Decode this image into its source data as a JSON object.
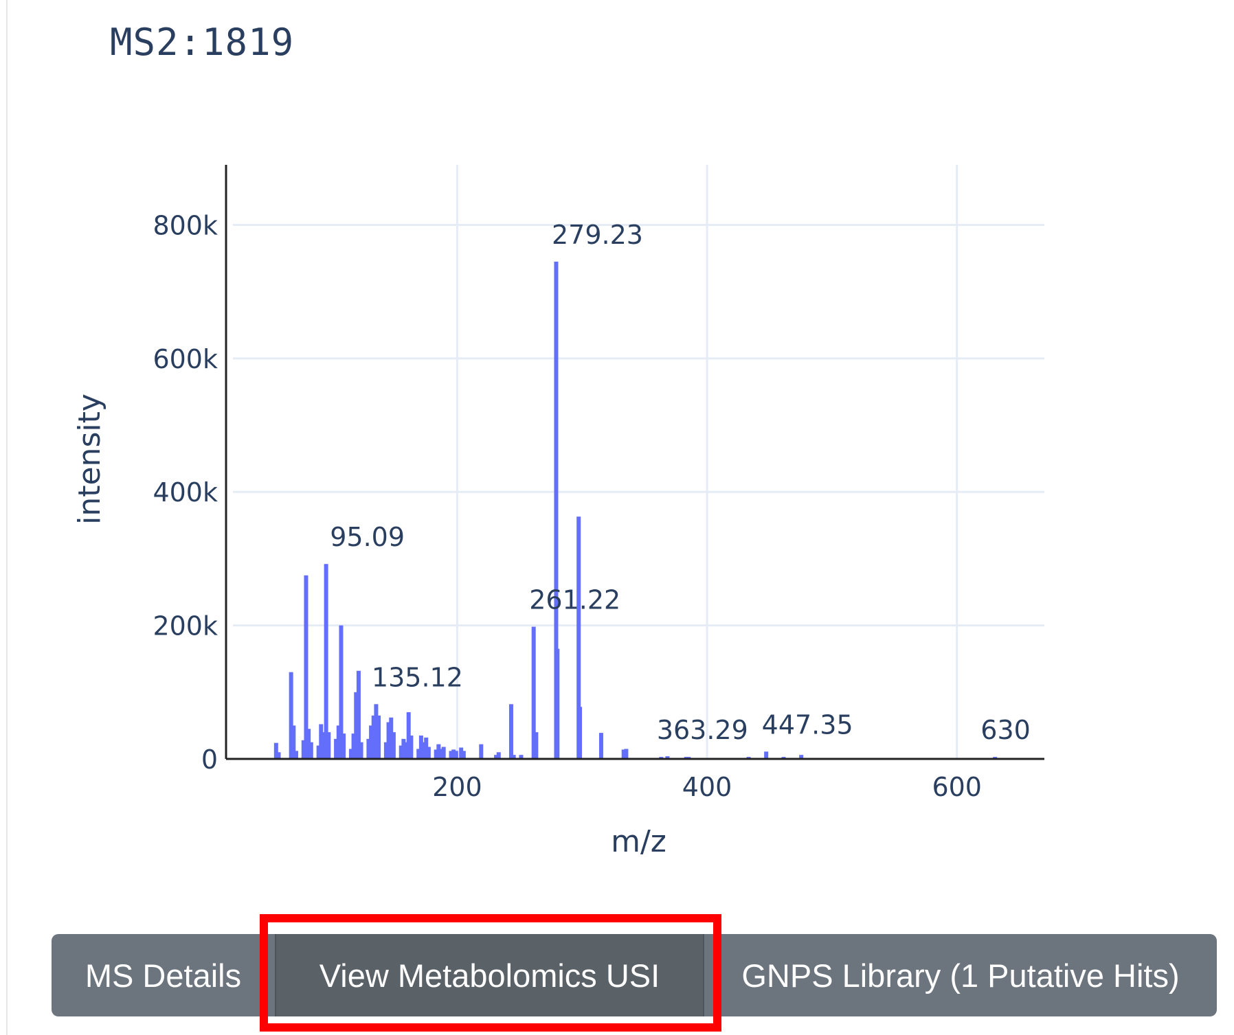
{
  "panel": {
    "title": "MS2:1819"
  },
  "chart_data": {
    "type": "bar",
    "xlabel": "m/z",
    "ylabel": "intensity",
    "xlim": [
      15,
      670
    ],
    "ylim": [
      0,
      890000
    ],
    "x_ticks": [
      200,
      400,
      600
    ],
    "x_tick_labels": [
      "200",
      "400",
      "600"
    ],
    "y_ticks": [
      0,
      200000,
      400000,
      600000,
      800000
    ],
    "y_tick_labels": [
      "0",
      "200k",
      "400k",
      "600k",
      "800k"
    ],
    "grid": true,
    "bar_color": "#636efa",
    "peaks": [
      [
        55.05,
        24000
      ],
      [
        57.07,
        10000
      ],
      [
        67.05,
        130000
      ],
      [
        69.07,
        50000
      ],
      [
        71.09,
        12000
      ],
      [
        77.04,
        28000
      ],
      [
        79.05,
        275000
      ],
      [
        81.07,
        45000
      ],
      [
        83.09,
        25000
      ],
      [
        89.06,
        20000
      ],
      [
        91.05,
        52000
      ],
      [
        93.07,
        40000
      ],
      [
        95.09,
        292000
      ],
      [
        97.1,
        40000
      ],
      [
        103.05,
        30000
      ],
      [
        105.07,
        50000
      ],
      [
        107.09,
        200000
      ],
      [
        109.1,
        38000
      ],
      [
        115.05,
        15000
      ],
      [
        117.07,
        38000
      ],
      [
        119.09,
        100000
      ],
      [
        121.1,
        132000
      ],
      [
        123.1,
        25000
      ],
      [
        129.07,
        30000
      ],
      [
        131.09,
        50000
      ],
      [
        133.1,
        65000
      ],
      [
        135.12,
        82000
      ],
      [
        137.13,
        65000
      ],
      [
        143.09,
        25000
      ],
      [
        145.1,
        55000
      ],
      [
        147.12,
        62000
      ],
      [
        149.13,
        40000
      ],
      [
        155.1,
        20000
      ],
      [
        157.1,
        30000
      ],
      [
        159.12,
        25000
      ],
      [
        161.13,
        70000
      ],
      [
        163.15,
        35000
      ],
      [
        169.1,
        15000
      ],
      [
        171.12,
        35000
      ],
      [
        173.13,
        25000
      ],
      [
        175.15,
        32000
      ],
      [
        177.16,
        18000
      ],
      [
        183.12,
        14000
      ],
      [
        185.13,
        22000
      ],
      [
        187.15,
        15000
      ],
      [
        189.16,
        18000
      ],
      [
        195.13,
        12000
      ],
      [
        197.15,
        14000
      ],
      [
        199.16,
        12000
      ],
      [
        203.18,
        17000
      ],
      [
        205.2,
        12000
      ],
      [
        219.19,
        22000
      ],
      [
        231.2,
        6000
      ],
      [
        233.21,
        10000
      ],
      [
        243.21,
        82000
      ],
      [
        245.23,
        6000
      ],
      [
        251.2,
        6000
      ],
      [
        261.22,
        198000
      ],
      [
        263.23,
        40000
      ],
      [
        279.23,
        745000
      ],
      [
        280.24,
        165000
      ],
      [
        297.24,
        363000
      ],
      [
        298.25,
        78000
      ],
      [
        315.25,
        39000
      ],
      [
        333.28,
        14000
      ],
      [
        335.3,
        15000
      ],
      [
        363.29,
        3000
      ],
      [
        368.3,
        4000
      ],
      [
        383.3,
        3000
      ],
      [
        385.3,
        3000
      ],
      [
        433.3,
        3000
      ],
      [
        447.35,
        11000
      ],
      [
        461.3,
        3000
      ],
      [
        475.4,
        6000
      ],
      [
        630.5,
        3000
      ]
    ],
    "labeled_peaks": [
      "95.09",
      "135.12",
      "261.22",
      "279.23",
      "363.29",
      "447.35",
      "630"
    ]
  },
  "buttons": {
    "ms_details": "MS Details",
    "view_usi": "View Metabolomics USI",
    "gnps_library": "GNPS Library (1 Putative Hits)"
  }
}
